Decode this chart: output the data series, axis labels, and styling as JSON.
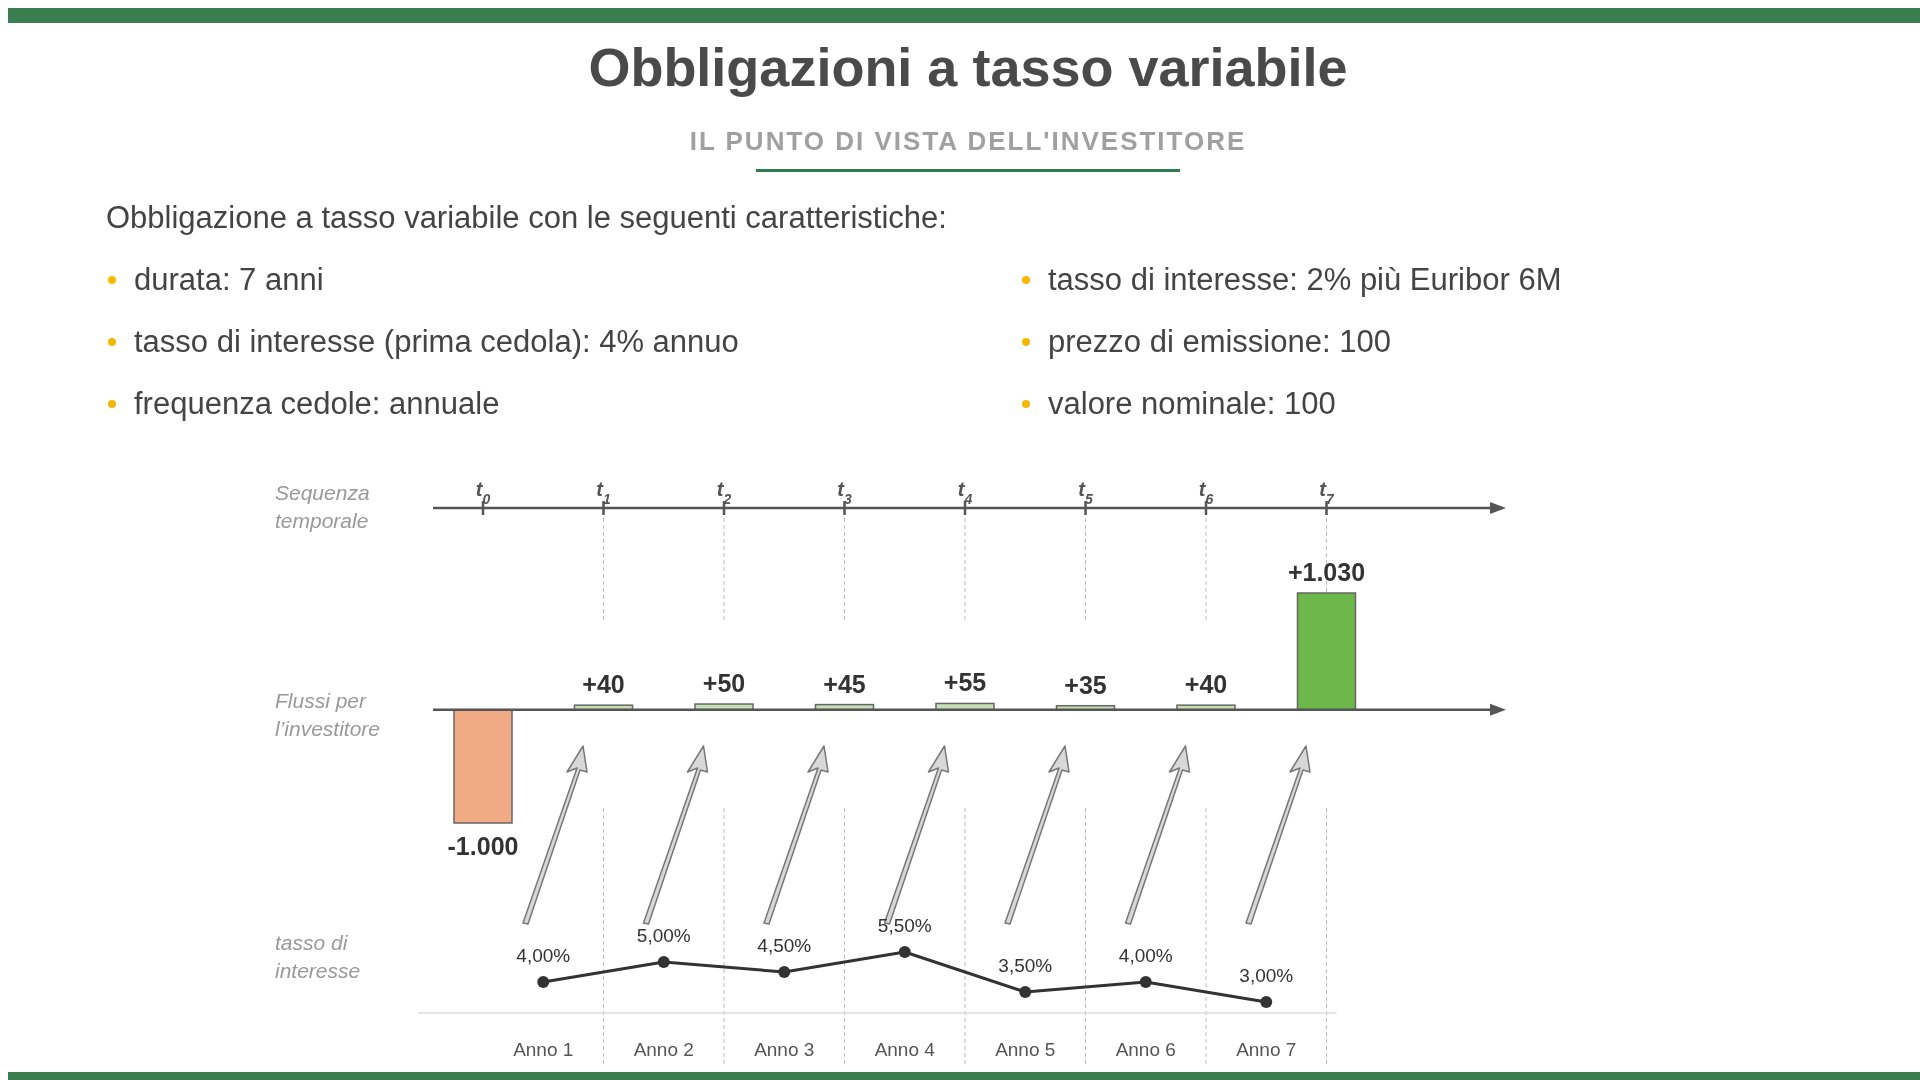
{
  "chart_data": [
    {
      "type": "bar",
      "title": "Obbligazioni a tasso variabile",
      "subtitle": "IL PUNTO DI VISTA DELL'INVESTITORE",
      "annotations": [
        "Obbligazione a tasso variabile con le seguenti caratteristiche:",
        "durata: 7 anni",
        "tasso di interesse (prima cedola): 4% annuo",
        "frequenza cedole: annuale",
        "tasso di interesse: 2% più Euribor 6M",
        "prezzo di emissione: 100",
        "valore nominale: 100"
      ],
      "xlabel": "Sequenza temporale",
      "ylabel": "Flussi per l’investitore",
      "categories": [
        "t$_{0}$",
        "t$_{1}$",
        "t$_{2}$",
        "t$_{3}$",
        "t$_{4}$",
        "t$_{5}$",
        "t$_{6}$",
        "t$_{7}$"
      ],
      "values": [
        -1000,
        40,
        50,
        45,
        55,
        35,
        40,
        1030
      ],
      "value_labels": [
        "-1.000",
        "+40",
        "+50",
        "+45",
        "+55",
        "+35",
        "+40",
        "+1.030"
      ],
      "colors": [
        "#f0aa84",
        "#c5e0b4",
        "#c5e0b4",
        "#c5e0b4",
        "#c5e0b4",
        "#c5e0b4",
        "#c5e0b4",
        "#6cb84a"
      ],
      "ref_lines": [
        {
          "axis": "y",
          "value": 0,
          "color": "#555555"
        },
        {
          "axis": "x",
          "value": "t$_{1}$",
          "color": "#bbbbbb",
          "line_style": "dashed"
        },
        {
          "axis": "x",
          "value": "t$_{2}$",
          "color": "#bbbbbb",
          "line_style": "dashed"
        },
        {
          "axis": "x",
          "value": "t$_{3}$",
          "color": "#bbbbbb",
          "line_style": "dashed"
        },
        {
          "axis": "x",
          "value": "t$_{4}$",
          "color": "#bbbbbb",
          "line_style": "dashed"
        },
        {
          "axis": "x",
          "value": "t$_{5}$",
          "color": "#bbbbbb",
          "line_style": "dashed"
        },
        {
          "axis": "x",
          "value": "t$_{6}$",
          "color": "#bbbbbb",
          "line_style": "dashed"
        },
        {
          "axis": "x",
          "value": "t$_{7}$",
          "color": "#bbbbbb",
          "line_style": "dashed"
        }
      ]
    },
    {
      "type": "line",
      "ylabel": "tasso di interesse",
      "categories": [
        "Anno 1",
        "Anno 2",
        "Anno 3",
        "Anno 4",
        "Anno 5",
        "Anno 6",
        "Anno 7"
      ],
      "values": [
        4,
        5,
        4.5,
        5.5,
        3.5,
        4,
        3
      ],
      "value_labels": [
        "4,00%",
        "5,00%",
        "4,50%",
        "5,50%",
        "3,50%",
        "4,00%",
        "3,00%"
      ],
      "color": "#333333",
      "marker": "circle"
    }
  ]
}
